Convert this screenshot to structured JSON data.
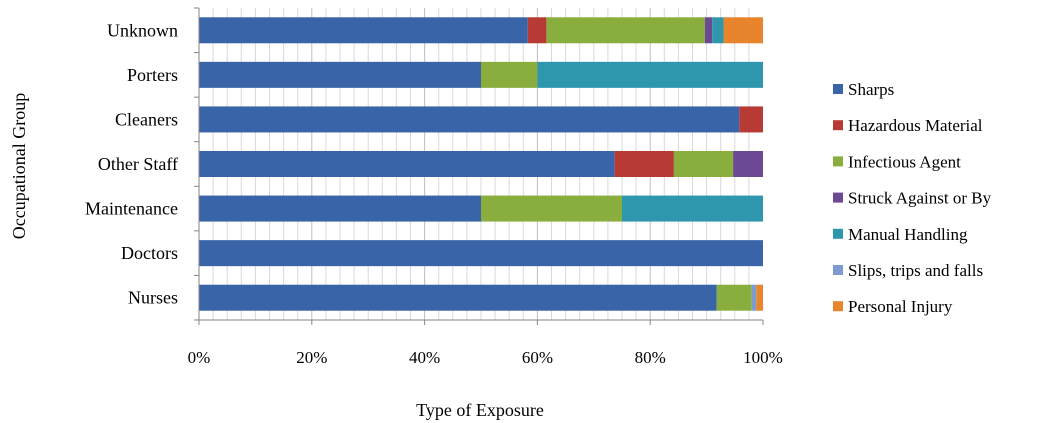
{
  "chart_data": {
    "type": "bar",
    "orientation": "horizontal",
    "stacking": "percent",
    "title": "",
    "xlabel": "Type of Exposure",
    "ylabel": "Occupational Group",
    "xlim": [
      0,
      100
    ],
    "x_ticks": [
      "0%",
      "20%",
      "40%",
      "60%",
      "80%",
      "100%"
    ],
    "grid": true,
    "legend_position": "right",
    "categories": [
      "Unknown",
      "Porters",
      "Cleaners",
      "Other Staff",
      "Maintenance",
      "Doctors",
      "Nurses"
    ],
    "series": [
      {
        "name": "Sharps",
        "color": "#3A64A8",
        "values": [
          58.3,
          50,
          95.8,
          73.7,
          50,
          100,
          91.8
        ]
      },
      {
        "name": "Hazardous Material",
        "color": "#B83A35",
        "values": [
          3.3,
          0,
          4.2,
          10.5,
          0,
          0,
          0
        ]
      },
      {
        "name": "Infectious Agent",
        "color": "#8AAE3E",
        "values": [
          28.1,
          10,
          0,
          10.5,
          25,
          0,
          6.2
        ]
      },
      {
        "name": "Struck Against or By",
        "color": "#6B4A93",
        "values": [
          1.3,
          0,
          0,
          5.3,
          0,
          0,
          0
        ]
      },
      {
        "name": "Manual Handling",
        "color": "#2E97AE",
        "values": [
          2.0,
          40,
          0,
          0,
          25,
          0,
          0
        ]
      },
      {
        "name": "Slips, trips and falls",
        "color": "#7C9BD1",
        "values": [
          0,
          0,
          0,
          0,
          0,
          0,
          0.8
        ]
      },
      {
        "name": "Personal Injury",
        "color": "#E8842B",
        "values": [
          7.0,
          0,
          0,
          0,
          0,
          0,
          1.2
        ]
      }
    ]
  }
}
